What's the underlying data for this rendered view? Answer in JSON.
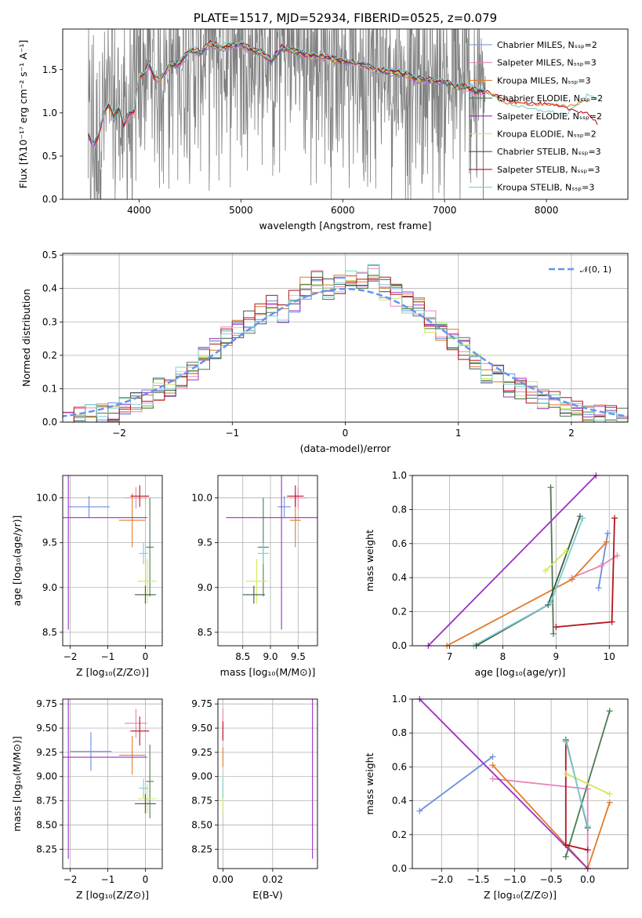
{
  "colors": {
    "data": "#808080",
    "grid": "#b0b0b0",
    "normal_curve": "#6495ed",
    "models": [
      "#6b8fdf",
      "#e784b8",
      "#e07b29",
      "#4a7a52",
      "#9b30c0",
      "#cfe85a",
      "#3d5a44",
      "#b5141f",
      "#7ecdd3"
    ]
  },
  "chart_data": [
    {
      "type": "line",
      "title": "PLATE=1517, MJD=52934, FIBERID=0525, z=0.079",
      "xlabel": "wavelength [Angstrom, rest frame]",
      "ylabel": "Flux [fλ10⁻¹⁷ erg cm⁻² s⁻¹ A⁻¹]",
      "xlim": [
        3250,
        8800
      ],
      "ylim": [
        0,
        1.97
      ],
      "xticks": [
        "4000",
        "5000",
        "6000",
        "7000",
        "8000"
      ],
      "xtick_values": [
        4000,
        5000,
        6000,
        7000,
        8000
      ],
      "yticks": [
        "0.0",
        "0.5",
        "1.0",
        "1.5"
      ],
      "ytick_values": [
        0,
        0.5,
        1.0,
        1.5
      ],
      "grid": false,
      "legend_position": "top-right",
      "data_range": [
        3500,
        7400
      ],
      "model_curve": {
        "x": [
          3500,
          3550,
          3600,
          3650,
          3700,
          3750,
          3800,
          3850,
          3900,
          3950,
          4000,
          4050,
          4100,
          4150,
          4200,
          4300,
          4400,
          4500,
          4600,
          4700,
          4800,
          4900,
          5000,
          5100,
          5200,
          5300,
          5400,
          5500,
          5600,
          5700,
          5800,
          5900,
          6000,
          6100,
          6200,
          6300,
          6400,
          6500,
          6600,
          6700,
          6800,
          6900,
          7000,
          7100,
          7200,
          7300,
          7400
        ],
        "y": [
          0.75,
          0.62,
          0.72,
          0.98,
          1.1,
          0.95,
          1.05,
          0.85,
          1.0,
          1.02,
          1.42,
          1.45,
          1.55,
          1.4,
          1.38,
          1.55,
          1.57,
          1.72,
          1.7,
          1.8,
          1.75,
          1.78,
          1.8,
          1.72,
          1.7,
          1.6,
          1.75,
          1.72,
          1.68,
          1.65,
          1.64,
          1.62,
          1.6,
          1.58,
          1.56,
          1.5,
          1.48,
          1.47,
          1.45,
          1.4,
          1.38,
          1.37,
          1.36,
          1.3,
          1.3,
          1.25,
          1.25
        ]
      },
      "ext_curves": [
        {
          "color_index": 8,
          "x": [
            7400,
            7600,
            7800,
            8000,
            8200,
            8400,
            8500
          ],
          "y": [
            1.25,
            1.12,
            1.05,
            1.02,
            0.98,
            1.2,
            1.18
          ]
        },
        {
          "color_index": 7,
          "x": [
            7400,
            7600,
            7800,
            8000,
            8200,
            8400,
            8500
          ],
          "y": [
            1.25,
            1.15,
            1.12,
            1.1,
            1.05,
            1.0,
            0.88
          ]
        },
        {
          "color_index": 2,
          "x": [
            7400,
            7600,
            7800,
            8000,
            8200,
            8400
          ],
          "y": [
            1.25,
            1.12,
            1.1,
            1.1,
            1.07,
            1.15
          ]
        }
      ],
      "series": [
        {
          "name": "Chabrier MILES, N_SSP=2"
        },
        {
          "name": "Salpeter MILES, N_SSP=3"
        },
        {
          "name": "Kroupa MILES, N_SSP=3"
        },
        {
          "name": "Chabrier ELODIE, N_SSP=2"
        },
        {
          "name": "Salpeter ELODIE, N_SSP=2"
        },
        {
          "name": "Kroupa ELODIE, N_SSP=2"
        },
        {
          "name": "Chabrier STELIB, N_SSP=3"
        },
        {
          "name": "Salpeter STELIB, N_SSP=3"
        },
        {
          "name": "Kroupa STELIB, N_SSP=3"
        }
      ]
    },
    {
      "type": "histogram",
      "xlabel": "(data-model)/error",
      "ylabel": "Normed distribution",
      "xlim": [
        -2.5,
        2.5
      ],
      "ylim": [
        0,
        0.505
      ],
      "xticks": [
        "−2",
        "−1",
        "0",
        "1",
        "2"
      ],
      "xtick_values": [
        -2,
        -1,
        0,
        1,
        2
      ],
      "yticks": [
        "0.0",
        "0.1",
        "0.2",
        "0.3",
        "0.4",
        "0.5"
      ],
      "ytick_values": [
        0,
        0.1,
        0.2,
        0.3,
        0.4,
        0.5
      ],
      "grid": true,
      "legend": "𝒩(0, 1)",
      "legend_position": "top-right",
      "bin_edges_start": -2.5,
      "bin_width": 0.1,
      "base_values": [
        0.0,
        0.01,
        0.02,
        0.03,
        0.03,
        0.05,
        0.06,
        0.07,
        0.1,
        0.1,
        0.13,
        0.15,
        0.19,
        0.22,
        0.25,
        0.28,
        0.3,
        0.32,
        0.35,
        0.33,
        0.36,
        0.4,
        0.42,
        0.4,
        0.41,
        0.43,
        0.42,
        0.44,
        0.4,
        0.38,
        0.36,
        0.34,
        0.3,
        0.27,
        0.25,
        0.22,
        0.19,
        0.15,
        0.14,
        0.11,
        0.1,
        0.09,
        0.07,
        0.06,
        0.05,
        0.04,
        0.03,
        0.02,
        0.02,
        0.01
      ]
    },
    {
      "type": "scatter",
      "xlabel": "Z [log₁₀(Z/Z⊙)]",
      "ylabel": "age  [log₁₀(age/yr)]",
      "xlim": [
        -2.2,
        0.45
      ],
      "ylim": [
        8.35,
        10.25
      ],
      "xticks": [
        "−2",
        "−1",
        "0"
      ],
      "xtick_values": [
        -2,
        -1,
        0
      ],
      "yticks": [
        "8.5",
        "9.0",
        "9.5",
        "10.0"
      ],
      "ytick_values": [
        8.5,
        9.0,
        9.5,
        10.0
      ],
      "grid": true,
      "points": [
        {
          "c": 0,
          "x": -1.5,
          "y": 9.9,
          "xe": 0.55,
          "ye": 0.12
        },
        {
          "c": 1,
          "x": -0.25,
          "y": 10.0,
          "xe": 0.3,
          "ye": 0.12
        },
        {
          "c": 2,
          "x": -0.35,
          "y": 9.75,
          "xe": 0.35,
          "ye": 0.3
        },
        {
          "c": 3,
          "x": 0.12,
          "y": 9.45,
          "xe": 0.1,
          "ye": 0.55
        },
        {
          "c": 4,
          "x": -2.05,
          "y": 9.78,
          "xe": 2.1,
          "ye": 1.25
        },
        {
          "c": 5,
          "x": 0.05,
          "y": 9.07,
          "xe": 0.25,
          "ye": 0.25
        },
        {
          "c": 6,
          "x": 0.0,
          "y": 8.92,
          "xe": 0.28,
          "ye": 0.1
        },
        {
          "c": 7,
          "x": -0.15,
          "y": 10.02,
          "xe": 0.25,
          "ye": 0.12
        },
        {
          "c": 8,
          "x": -0.05,
          "y": 9.38,
          "xe": 0.12,
          "ye": 0.12
        }
      ]
    },
    {
      "type": "scatter",
      "xlabel": "mass [log₁₀(M/M⊙)]",
      "xlim": [
        8.05,
        9.85
      ],
      "ylim": [
        8.35,
        10.25
      ],
      "xticks": [
        "8.5",
        "9.0",
        "9.5"
      ],
      "xtick_values": [
        8.5,
        9.0,
        9.5
      ],
      "yticks": [
        "8.5",
        "9.0",
        "9.5",
        "10.0"
      ],
      "ytick_values": [
        8.5,
        9.0,
        9.5,
        10.0
      ],
      "grid": true,
      "points": [
        {
          "c": 0,
          "x": 9.25,
          "y": 9.9,
          "xe": 0.12,
          "ye": 0.12
        },
        {
          "c": 1,
          "x": 9.5,
          "y": 10.0,
          "xe": 0.15,
          "ye": 0.12
        },
        {
          "c": 2,
          "x": 9.45,
          "y": 9.75,
          "xe": 0.1,
          "ye": 0.3
        },
        {
          "c": 3,
          "x": 8.87,
          "y": 9.45,
          "xe": 0.1,
          "ye": 0.55
        },
        {
          "c": 4,
          "x": 9.2,
          "y": 9.78,
          "xe": 1.0,
          "ye": 1.25
        },
        {
          "c": 5,
          "x": 8.75,
          "y": 9.07,
          "xe": 0.2,
          "ye": 0.25
        },
        {
          "c": 6,
          "x": 8.7,
          "y": 8.92,
          "xe": 0.2,
          "ye": 0.1
        },
        {
          "c": 7,
          "x": 9.45,
          "y": 10.02,
          "xe": 0.15,
          "ye": 0.12
        },
        {
          "c": 8,
          "x": 8.87,
          "y": 9.38,
          "xe": 0.1,
          "ye": 0.12
        }
      ]
    },
    {
      "type": "line",
      "xlabel": "age  [log₁₀(age/yr)]",
      "ylabel": "mass weight",
      "xlim": [
        6.3,
        10.35
      ],
      "ylim": [
        0,
        1.0
      ],
      "xticks": [
        "7",
        "8",
        "9",
        "10"
      ],
      "xtick_values": [
        7,
        8,
        9,
        10
      ],
      "yticks": [
        "0.0",
        "0.2",
        "0.4",
        "0.6",
        "0.8",
        "1.0"
      ],
      "ytick_values": [
        0,
        0.2,
        0.4,
        0.6,
        0.8,
        1.0
      ],
      "grid": true,
      "series": [
        {
          "c": 0,
          "x": [
            9.8,
            9.97
          ],
          "y": [
            0.34,
            0.66
          ]
        },
        {
          "c": 1,
          "x": [
            9.3,
            9.85,
            10.15
          ],
          "y": [
            0.4,
            0.47,
            0.53
          ]
        },
        {
          "c": 2,
          "x": [
            6.95,
            9.3,
            9.95
          ],
          "y": [
            0.0,
            0.39,
            0.61
          ]
        },
        {
          "c": 3,
          "x": [
            8.9,
            8.95
          ],
          "y": [
            0.93,
            0.07
          ]
        },
        {
          "c": 4,
          "x": [
            6.6,
            9.75
          ],
          "y": [
            0.0,
            1.0
          ]
        },
        {
          "c": 5,
          "x": [
            8.8,
            9.2
          ],
          "y": [
            0.44,
            0.56
          ]
        },
        {
          "c": 6,
          "x": [
            7.5,
            8.85,
            9.45
          ],
          "y": [
            0.0,
            0.24,
            0.76
          ]
        },
        {
          "c": 7,
          "x": [
            9.0,
            10.05,
            10.1
          ],
          "y": [
            0.11,
            0.14,
            0.75
          ]
        },
        {
          "c": 8,
          "x": [
            7.45,
            8.9,
            9.5
          ],
          "y": [
            0.0,
            0.25,
            0.75
          ]
        }
      ]
    },
    {
      "type": "scatter",
      "xlabel": "Z [log₁₀(Z/Z⊙)]",
      "ylabel": "mass [log₁₀(M/M⊙)]",
      "xlim": [
        -2.2,
        0.45
      ],
      "ylim": [
        8.05,
        9.8
      ],
      "xticks": [
        "−2",
        "−1",
        "0"
      ],
      "xtick_values": [
        -2,
        -1,
        0
      ],
      "yticks": [
        "8.25",
        "8.50",
        "8.75",
        "9.00",
        "9.25",
        "9.50",
        "9.75"
      ],
      "ytick_values": [
        8.25,
        8.5,
        8.75,
        9.0,
        9.25,
        9.5,
        9.75
      ],
      "grid": true,
      "points": [
        {
          "c": 0,
          "x": -1.45,
          "y": 9.26,
          "xe": 0.55,
          "ye": 0.2
        },
        {
          "c": 1,
          "x": -0.25,
          "y": 9.55,
          "xe": 0.3,
          "ye": 0.15
        },
        {
          "c": 2,
          "x": -0.35,
          "y": 9.22,
          "xe": 0.35,
          "ye": 0.2
        },
        {
          "c": 3,
          "x": 0.12,
          "y": 8.95,
          "xe": 0.1,
          "ye": 0.38
        },
        {
          "c": 4,
          "x": -2.05,
          "y": 9.2,
          "xe": 2.1,
          "ye": 1.05
        },
        {
          "c": 5,
          "x": 0.05,
          "y": 8.77,
          "xe": 0.25,
          "ye": 0.15
        },
        {
          "c": 6,
          "x": 0.0,
          "y": 8.72,
          "xe": 0.28,
          "ye": 0.1
        },
        {
          "c": 7,
          "x": -0.15,
          "y": 9.47,
          "xe": 0.25,
          "ye": 0.15
        },
        {
          "c": 8,
          "x": -0.05,
          "y": 8.88,
          "xe": 0.12,
          "ye": 0.1
        }
      ]
    },
    {
      "type": "scatter",
      "xlabel": "E(B-V)",
      "xlim": [
        -0.002,
        0.038
      ],
      "ylim": [
        8.05,
        9.8
      ],
      "xticks": [
        "0.00",
        "0.02"
      ],
      "xtick_values": [
        0.0,
        0.02
      ],
      "yticks": [
        "8.25",
        "8.50",
        "8.75",
        "9.00",
        "9.25",
        "9.50",
        "9.75"
      ],
      "ytick_values": [
        8.25,
        8.5,
        8.75,
        9.0,
        9.25,
        9.5,
        9.75
      ],
      "grid": true,
      "points": [
        {
          "c": 1,
          "x": 0.0,
          "y": 9.55,
          "xe": 0.0,
          "ye": 0.15
        },
        {
          "c": 7,
          "x": 0.0,
          "y": 9.47,
          "xe": 0.0,
          "ye": 0.1
        },
        {
          "c": 2,
          "x": 0.0,
          "y": 9.2,
          "xe": 0.0,
          "ye": 0.1
        },
        {
          "c": 5,
          "x": 0.0,
          "y": 8.77,
          "xe": 0.0,
          "ye": 0.15
        },
        {
          "c": 8,
          "x": 0.0,
          "y": 8.88,
          "xe": 0.0,
          "ye": 0.1
        },
        {
          "c": 4,
          "x": 0.036,
          "y": 9.2,
          "xe": 0.0,
          "ye": 1.05
        }
      ]
    },
    {
      "type": "line",
      "xlabel": "Z [log₁₀(Z/Z⊙)]",
      "ylabel": "mass weight",
      "xlim": [
        -2.4,
        0.55
      ],
      "ylim": [
        0,
        1.0
      ],
      "xticks": [
        "−2.0",
        "−1.5",
        "−1.0",
        "−0.5",
        "0.0"
      ],
      "xtick_values": [
        -2.0,
        -1.5,
        -1.0,
        -0.5,
        0.0
      ],
      "yticks": [
        "0.0",
        "0.2",
        "0.4",
        "0.6",
        "0.8",
        "1.0"
      ],
      "ytick_values": [
        0,
        0.2,
        0.4,
        0.6,
        0.8,
        1.0
      ],
      "grid": true,
      "series": [
        {
          "c": 0,
          "x": [
            -2.3,
            -1.3
          ],
          "y": [
            0.34,
            0.66
          ]
        },
        {
          "c": 1,
          "x": [
            -1.3,
            0.0,
            0.0
          ],
          "y": [
            0.53,
            0.47,
            0.0
          ]
        },
        {
          "c": 2,
          "x": [
            -1.3,
            0.0,
            0.3
          ],
          "y": [
            0.61,
            0.0,
            0.39
          ]
        },
        {
          "c": 3,
          "x": [
            -0.3,
            0.3
          ],
          "y": [
            0.07,
            0.93
          ]
        },
        {
          "c": 4,
          "x": [
            -2.3,
            0.0
          ],
          "y": [
            1.0,
            0.0
          ]
        },
        {
          "c": 5,
          "x": [
            -0.3,
            0.3
          ],
          "y": [
            0.56,
            0.44
          ]
        },
        {
          "c": 6,
          "x": [
            -0.3,
            0.0
          ],
          "y": [
            0.76,
            0.24
          ]
        },
        {
          "c": 7,
          "x": [
            -0.3,
            -0.3,
            0.0
          ],
          "y": [
            0.75,
            0.14,
            0.11
          ]
        },
        {
          "c": 8,
          "x": [
            -0.3,
            0.0
          ],
          "y": [
            0.75,
            0.25
          ]
        }
      ]
    }
  ]
}
